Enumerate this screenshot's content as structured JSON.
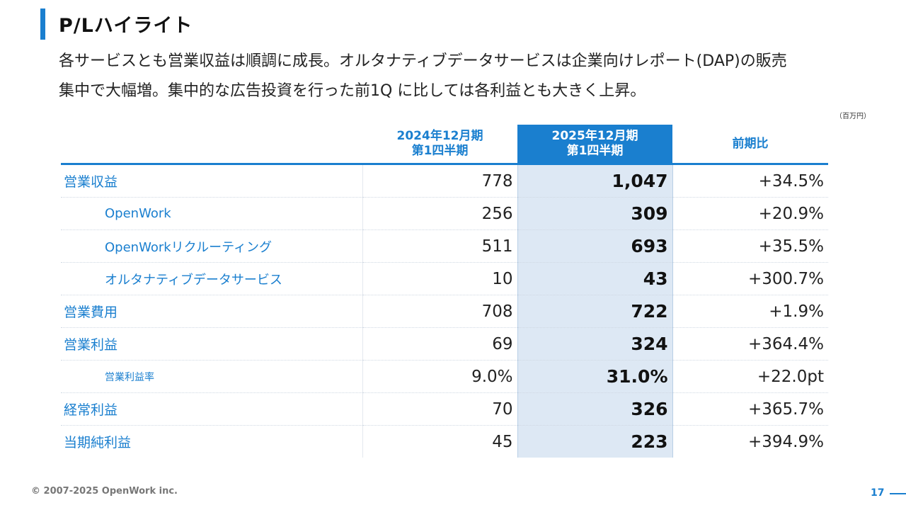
{
  "title": "P/Lハイライト",
  "lead": [
    "各サービスとも営業収益は順調に成長。オルタナティブデータサービスは企業向けレポート(DAP)の販売",
    "集中で大幅増。集中的な広告投資を行った前1Q に比しては各利益とも大きく上昇。"
  ],
  "unit": "（百万円）",
  "table": {
    "headers": {
      "label": "",
      "prev": "2024年12月期\n第1四半期",
      "cur": "2025年12月期\n第1四半期",
      "change": "前期比"
    },
    "rows": [
      {
        "label": "営業収益",
        "prev": "778",
        "cur": "1,047",
        "change": "+34.5%"
      },
      {
        "label": "OpenWork",
        "prev": "256",
        "cur": "309",
        "change": "+20.9%"
      },
      {
        "label": "OpenWorkリクルーティング",
        "prev": "511",
        "cur": "693",
        "change": "+35.5%"
      },
      {
        "label": "オルタナティブデータサービス",
        "prev": "10",
        "cur": "43",
        "change": "+300.7%"
      },
      {
        "label": "営業費用",
        "prev": "708",
        "cur": "722",
        "change": "+1.9%"
      },
      {
        "label": "営業利益",
        "prev": "69",
        "cur": "324",
        "change": "+364.4%"
      },
      {
        "label": "営業利益率",
        "prev": "9.0%",
        "cur": "31.0%",
        "change": "+22.0pt"
      },
      {
        "label": "経常利益",
        "prev": "70",
        "cur": "326",
        "change": "+365.7%"
      },
      {
        "label": "当期純利益",
        "prev": "45",
        "cur": "223",
        "change": "+394.9%"
      }
    ]
  },
  "footer": {
    "copyright": "© 2007-2025 OpenWork inc.",
    "page": "17"
  },
  "colors": {
    "accent": "#1a7fcf",
    "highlight": "#dde8f4"
  }
}
